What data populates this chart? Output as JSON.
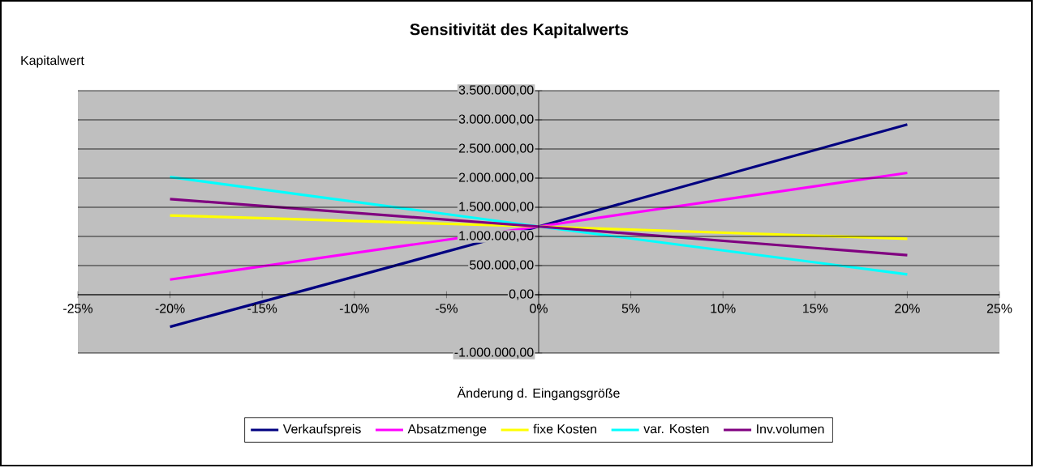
{
  "chart_data": {
    "type": "line",
    "title": "Sensitivität des Kapitalwerts",
    "xlabel": "Änderung d. Eingangsgröße",
    "annotations": [
      "Kapitalwert"
    ],
    "x": [
      -20,
      0,
      20
    ],
    "series": [
      {
        "name": "Verkaufspreis",
        "color": "#000080",
        "values": [
          -550000,
          1170000,
          2920000
        ]
      },
      {
        "name": "Absatzmenge",
        "color": "#ff00ff",
        "values": [
          260000,
          1170000,
          2090000
        ]
      },
      {
        "name": "fixe Kosten",
        "color": "#ffff00",
        "values": [
          1360000,
          1170000,
          960000
        ]
      },
      {
        "name": "var. Kosten",
        "color": "#00ffff",
        "values": [
          2020000,
          1170000,
          350000
        ]
      },
      {
        "name": "Inv.volumen",
        "color": "#800080",
        "values": [
          1640000,
          1170000,
          680000
        ]
      }
    ],
    "xlim": [
      -25,
      25
    ],
    "xticks": [
      {
        "value": -25,
        "label": "-25%"
      },
      {
        "value": -20,
        "label": "-20%"
      },
      {
        "value": -15,
        "label": "-15%"
      },
      {
        "value": -10,
        "label": "-10%"
      },
      {
        "value": -5,
        "label": "-5%"
      },
      {
        "value": 0,
        "label": "0%"
      },
      {
        "value": 5,
        "label": "5%"
      },
      {
        "value": 10,
        "label": "10%"
      },
      {
        "value": 15,
        "label": "15%"
      },
      {
        "value": 20,
        "label": "20%"
      },
      {
        "value": 25,
        "label": "25%"
      }
    ],
    "ylim": [
      -1000000,
      3500000
    ],
    "yticks": [
      {
        "value": -1000000,
        "label": "-1.000.000,00"
      },
      {
        "value": 0,
        "label": "0,00"
      },
      {
        "value": 500000,
        "label": "500.000,00"
      },
      {
        "value": 1000000,
        "label": "1.000.000,00"
      },
      {
        "value": 1500000,
        "label": "1.500.000,00"
      },
      {
        "value": 2000000,
        "label": "2.000.000,00"
      },
      {
        "value": 2500000,
        "label": "2.500.000,00"
      },
      {
        "value": 3000000,
        "label": "3.000.000,00"
      },
      {
        "value": 3500000,
        "label": "3.500.000,00"
      }
    ],
    "grid": "y",
    "legend": "bottom",
    "marker": "none",
    "line_style": "solid"
  }
}
